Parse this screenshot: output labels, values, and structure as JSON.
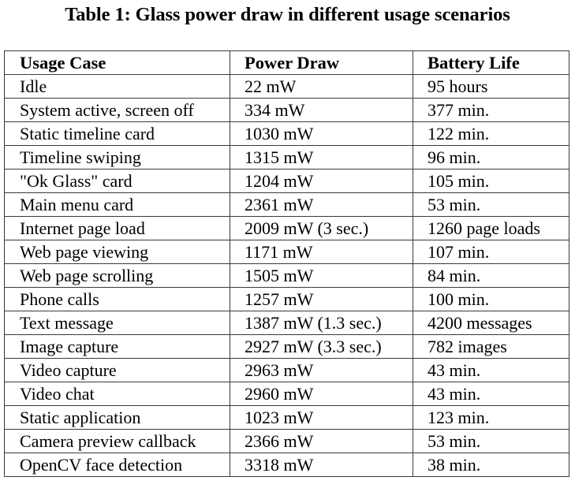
{
  "caption": "Table 1: Glass power draw in different usage scenarios",
  "table": {
    "headers": [
      "Usage Case",
      "Power Draw",
      "Battery Life"
    ],
    "rows": [
      [
        "Idle",
        "22 mW",
        "95 hours"
      ],
      [
        "System active, screen off",
        "334 mW",
        "377 min."
      ],
      [
        "Static timeline card",
        "1030 mW",
        "122 min."
      ],
      [
        "Timeline swiping",
        "1315 mW",
        "96 min."
      ],
      [
        "\"Ok Glass\" card",
        "1204 mW",
        "105 min."
      ],
      [
        "Main menu card",
        "2361 mW",
        "53 min."
      ],
      [
        "Internet page load",
        "2009 mW (3 sec.)",
        "1260 page loads"
      ],
      [
        "Web page viewing",
        "1171 mW",
        "107 min."
      ],
      [
        "Web page scrolling",
        "1505 mW",
        "84 min."
      ],
      [
        "Phone calls",
        "1257 mW",
        "100 min."
      ],
      [
        "Text message",
        "1387 mW (1.3 sec.)",
        "4200 messages"
      ],
      [
        "Image capture",
        "2927 mW (3.3 sec.)",
        "782 images"
      ],
      [
        "Video capture",
        "2963 mW",
        "43 min."
      ],
      [
        "Video chat",
        "2960 mW",
        "43 min."
      ],
      [
        "Static application",
        "1023 mW",
        "123 min."
      ],
      [
        "Camera preview callback",
        "2366 mW",
        "53 min."
      ],
      [
        "OpenCV face detection",
        "3318 mW",
        "38 min."
      ]
    ]
  }
}
